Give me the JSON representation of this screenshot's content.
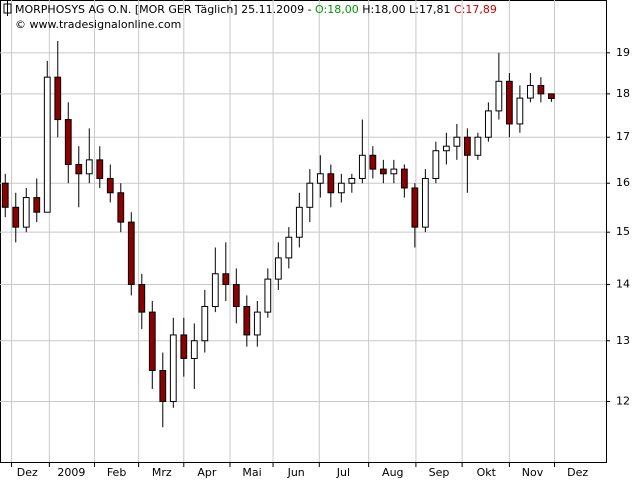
{
  "chart_data": {
    "type": "candlestick",
    "title": "MORPHOSYS AG O.N. [MOR GER  Täglich] 25.11.2009 - ",
    "open_label": "O:18,00",
    "high_low_label": " H:18,00 L:17,81 ",
    "close_label": "C:17,89",
    "subtitle": "© www.tradesignalonline.com",
    "open": [
      16.0,
      15.5,
      15.1,
      15.7,
      15.4,
      18.4,
      17.4,
      16.4,
      16.2,
      16.5,
      16.1,
      15.8,
      15.2,
      14.0,
      13.5,
      12.5,
      12.0,
      13.1,
      12.7,
      13.0,
      13.6,
      14.2,
      14.0,
      13.6,
      13.1,
      13.5,
      14.1,
      14.5,
      14.9,
      15.5,
      16.0,
      16.2,
      15.8,
      16.0,
      16.1,
      16.6,
      16.3,
      16.2,
      16.3,
      15.9,
      15.1,
      16.1,
      16.7,
      16.8,
      17.0,
      16.6,
      17.0,
      17.6,
      18.3,
      17.3,
      17.9,
      18.2,
      18.0
    ],
    "high": [
      16.2,
      15.8,
      15.9,
      16.1,
      18.8,
      19.3,
      17.8,
      16.8,
      17.2,
      16.8,
      16.4,
      16.0,
      15.4,
      14.2,
      13.7,
      12.8,
      13.4,
      13.4,
      13.3,
      13.9,
      14.7,
      14.8,
      14.3,
      13.8,
      13.7,
      14.3,
      14.8,
      15.1,
      15.8,
      16.3,
      16.6,
      16.4,
      16.2,
      16.2,
      17.4,
      16.8,
      16.5,
      16.5,
      16.4,
      16.0,
      16.3,
      16.9,
      17.1,
      17.3,
      17.2,
      17.1,
      17.8,
      19.0,
      18.5,
      18.2,
      18.5,
      18.4,
      18.0
    ],
    "low": [
      15.3,
      14.8,
      15.0,
      15.2,
      15.4,
      17.0,
      16.0,
      15.5,
      16.0,
      15.9,
      15.6,
      15.0,
      13.8,
      13.2,
      12.2,
      11.6,
      11.9,
      12.4,
      12.2,
      12.8,
      13.5,
      13.7,
      13.3,
      12.9,
      12.9,
      13.4,
      13.9,
      14.3,
      14.7,
      15.2,
      15.7,
      15.5,
      15.6,
      15.8,
      16.0,
      16.1,
      16.0,
      16.0,
      15.7,
      14.7,
      15.0,
      16.0,
      16.4,
      16.5,
      15.8,
      16.5,
      16.9,
      17.4,
      17.0,
      17.1,
      17.8,
      17.8,
      17.81
    ],
    "close": [
      15.5,
      15.1,
      15.7,
      15.4,
      18.4,
      17.4,
      16.4,
      16.2,
      16.5,
      16.1,
      15.8,
      15.2,
      14.0,
      13.5,
      12.5,
      12.0,
      13.1,
      12.7,
      13.0,
      13.6,
      14.2,
      14.0,
      13.6,
      13.1,
      13.5,
      14.1,
      14.5,
      14.9,
      15.5,
      16.0,
      16.2,
      15.8,
      16.0,
      16.1,
      16.6,
      16.3,
      16.2,
      16.3,
      15.9,
      15.1,
      16.1,
      16.7,
      16.8,
      17.0,
      16.6,
      17.0,
      17.6,
      18.3,
      17.3,
      17.9,
      18.2,
      18.0,
      17.89
    ],
    "up_color": "#ffffff",
    "down_color": "#8b0000",
    "xlim": [
      -0.5,
      57.2
    ],
    "xticks": [
      0.6,
      4.2,
      8.5,
      12.7,
      17.0,
      21.4,
      25.5,
      29.9,
      34.6,
      39.1,
      43.5,
      48.0,
      52.3
    ],
    "month_labels": [
      {
        "value": 2.1,
        "label": "Dez"
      },
      {
        "value": 6.3,
        "label": "2009"
      },
      {
        "value": 10.6,
        "label": "Feb"
      },
      {
        "value": 14.9,
        "label": "Mrz"
      },
      {
        "value": 19.2,
        "label": "Apr"
      },
      {
        "value": 23.5,
        "label": "Mai"
      },
      {
        "value": 27.7,
        "label": "Jun"
      },
      {
        "value": 32.2,
        "label": "Jul"
      },
      {
        "value": 36.9,
        "label": "Aug"
      },
      {
        "value": 41.3,
        "label": "Sep"
      },
      {
        "value": 45.8,
        "label": "Okt"
      },
      {
        "value": 50.2,
        "label": "Nov"
      },
      {
        "value": 54.5,
        "label": "Dez"
      }
    ],
    "ylim": [
      11.08,
      20.37
    ],
    "yticks": [
      12,
      13,
      14,
      15,
      16,
      17,
      18,
      19
    ],
    "log_scale": true,
    "grid": true
  }
}
